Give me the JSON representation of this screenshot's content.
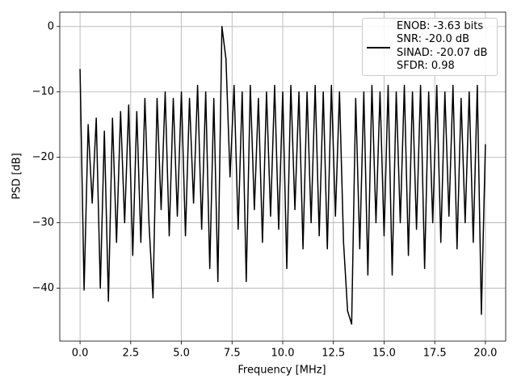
{
  "chart_data": {
    "type": "line",
    "xlabel": "Frequency [MHz]",
    "ylabel": "PSD [dB]",
    "x": [
      0.0,
      0.2,
      0.4,
      0.6,
      0.8,
      1.0,
      1.2,
      1.4,
      1.6,
      1.8,
      2.0,
      2.2,
      2.4,
      2.6,
      2.8,
      3.0,
      3.2,
      3.4,
      3.6,
      3.8,
      4.0,
      4.2,
      4.4,
      4.6,
      4.8,
      5.0,
      5.2,
      5.4,
      5.6,
      5.8,
      6.0,
      6.2,
      6.4,
      6.6,
      6.8,
      7.0,
      7.2,
      7.4,
      7.6,
      7.8,
      8.0,
      8.2,
      8.4,
      8.6,
      8.8,
      9.0,
      9.2,
      9.4,
      9.6,
      9.8,
      10.0,
      10.2,
      10.4,
      10.6,
      10.8,
      11.0,
      11.2,
      11.4,
      11.6,
      11.8,
      12.0,
      12.2,
      12.4,
      12.6,
      12.8,
      13.0,
      13.2,
      13.4,
      13.6,
      13.8,
      14.0,
      14.2,
      14.4,
      14.6,
      14.8,
      15.0,
      15.2,
      15.4,
      15.6,
      15.8,
      16.0,
      16.2,
      16.4,
      16.6,
      16.8,
      17.0,
      17.2,
      17.4,
      17.6,
      17.8,
      18.0,
      18.2,
      18.4,
      18.6,
      18.8,
      19.0,
      19.2,
      19.4,
      19.6,
      19.8,
      20.0
    ],
    "series": [
      {
        "name": "ENOB: -3.63 bits\nSNR: -20.0 dB\nSINAD: -20.07 dB\nSFDR: 0.98",
        "color": "#000000",
        "values": [
          -6.5,
          -40.3,
          -15,
          -27,
          -14,
          -40,
          -16,
          -42,
          -14,
          -33,
          -13,
          -30,
          -12,
          -35,
          -13,
          -33,
          -11,
          -30,
          -41.5,
          -11,
          -28,
          -10,
          -32,
          -11,
          -29,
          -10,
          -32,
          -11,
          -27,
          -9,
          -31,
          -10,
          -37,
          -11,
          -39,
          0,
          -5,
          -23,
          -9,
          -31,
          -10,
          -39,
          -9,
          -28,
          -11,
          -33,
          -10,
          -29,
          -9,
          -31,
          -10,
          -37,
          -9,
          -28,
          -10,
          -34,
          -10,
          -30,
          -9,
          -32,
          -10,
          -34,
          -9,
          -29,
          -10,
          -33,
          -43.5,
          -45.5,
          -11,
          -34,
          -10,
          -38,
          -9,
          -30,
          -10,
          -32,
          -9,
          -38,
          -10,
          -30,
          -9,
          -35,
          -10,
          -31,
          -9,
          -37,
          -10,
          -30,
          -9,
          -33,
          -10,
          -29,
          -9,
          -34,
          -11,
          -30,
          -10,
          -33,
          -9,
          -44,
          -18
        ]
      }
    ],
    "xlim": [
      -1.0,
      21.0
    ],
    "ylim": [
      -48.1,
      2.2
    ],
    "xticks": [
      {
        "value": 0,
        "label": "0.0"
      },
      {
        "value": 2.5,
        "label": "2.5"
      },
      {
        "value": 5,
        "label": "5.0"
      },
      {
        "value": 7.5,
        "label": "7.5"
      },
      {
        "value": 10,
        "label": "10.0"
      },
      {
        "value": 12.5,
        "label": "12.5"
      },
      {
        "value": 15,
        "label": "15.0"
      },
      {
        "value": 17.5,
        "label": "17.5"
      },
      {
        "value": 20,
        "label": "20.0"
      }
    ],
    "yticks": [
      {
        "value": -40,
        "label": "−40"
      },
      {
        "value": -30,
        "label": "−30"
      },
      {
        "value": -20,
        "label": "−20"
      },
      {
        "value": -10,
        "label": "−10"
      },
      0
    ],
    "grid": true,
    "legend": "upper right"
  }
}
